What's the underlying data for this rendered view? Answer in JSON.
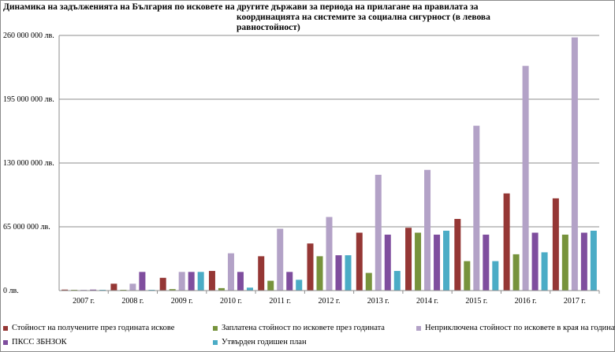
{
  "chart_data": {
    "type": "bar",
    "title_line1": "Динамика на задълженията на България по исковете на другите държави за периода на прилагане на правилата за",
    "title_line2": "координацията на системите за социална сигурност (в левова равностойност)",
    "categories": [
      "2007 г.",
      "2008 г.",
      "2009 г.",
      "2010 г.",
      "2011 г.",
      "2012 г.",
      "2013 г.",
      "2014 г.",
      "2015 г.",
      "2016 г.",
      "2017 г."
    ],
    "y_ticks": [
      0,
      65000000,
      130000000,
      195000000,
      260000000
    ],
    "y_tick_labels": [
      "0 лв.",
      "65 000 000 лв.",
      "130 000 000 лв.",
      "195 000 000 лв.",
      "260 000 000 лв."
    ],
    "ylim": [
      0,
      260000000
    ],
    "grid": true,
    "legend_position": "bottom",
    "series": [
      {
        "name": "Стойност на получените през годината искове",
        "color": "#953735",
        "values": [
          1000000,
          7000000,
          13000000,
          20000000,
          35000000,
          48000000,
          59000000,
          64000000,
          73000000,
          99000000,
          94000000
        ]
      },
      {
        "name": "Заплатена стойност по исковете през годината",
        "color": "#77933c",
        "values": [
          300000,
          700000,
          1500000,
          2500000,
          10000000,
          35000000,
          18000000,
          59000000,
          30000000,
          37000000,
          57000000
        ]
      },
      {
        "name": "Неприключена стойност по исковете в края на годината",
        "color": "#b3a2c7",
        "values": [
          600000,
          7000000,
          19000000,
          38000000,
          63000000,
          75000000,
          118000000,
          123000000,
          168000000,
          229000000,
          258000000
        ]
      },
      {
        "name": "ПКСС ЗБНЗОК",
        "color": "#7f4e9e",
        "values": [
          1000000,
          19000000,
          19000000,
          19000000,
          19000000,
          36000000,
          57000000,
          57000000,
          57000000,
          59000000,
          59000000
        ]
      },
      {
        "name": "Утвърден годишен план",
        "color": "#4bacc6",
        "values": [
          600000,
          800000,
          19000000,
          3000000,
          11000000,
          36000000,
          20000000,
          61000000,
          30000000,
          39000000,
          61000000
        ]
      }
    ]
  }
}
